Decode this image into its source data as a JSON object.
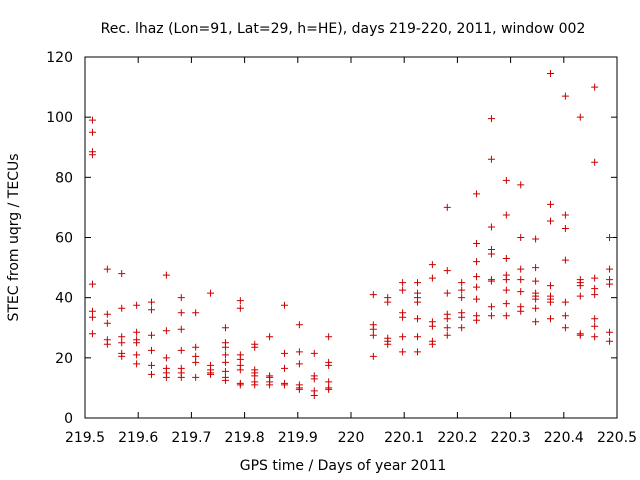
{
  "chart_data": {
    "type": "scatter",
    "title": "Rec. lhaz (Lon=91, Lat=29, h=HE), days 219-220, 2011, window 002",
    "xlabel": "GPS time / Days of year 2011",
    "ylabel": "STEC from uqrg / TECUs",
    "xlim": [
      219.5,
      220.5
    ],
    "ylim": [
      0,
      120
    ],
    "x_ticks": [
      219.5,
      219.6,
      219.7,
      219.8,
      219.9,
      220,
      220.1,
      220.2,
      220.3,
      220.4,
      220.5
    ],
    "x_tick_labels": [
      "219.5",
      "219.6",
      "219.7",
      "219.8",
      "219.9",
      "220",
      "220.1",
      "220.2",
      "220.3",
      "220.4",
      "220.5"
    ],
    "y_ticks": [
      0,
      20,
      40,
      60,
      80,
      100,
      120
    ],
    "y_tick_labels": [
      "0",
      "20",
      "40",
      "60",
      "80",
      "100",
      "120"
    ],
    "grid": false,
    "marker": "+",
    "color": "#cc0000",
    "series": [
      {
        "points": [
          [
            219.514,
            99
          ],
          [
            219.514,
            95
          ],
          [
            219.514,
            88.5
          ],
          [
            219.514,
            87.5
          ],
          [
            219.514,
            44.5
          ],
          [
            219.514,
            35.5
          ],
          [
            219.514,
            33.5
          ],
          [
            219.514,
            28
          ],
          [
            219.542,
            49.5
          ],
          [
            219.542,
            34.5
          ],
          [
            219.542,
            31.5
          ],
          [
            219.542,
            26
          ],
          [
            219.542,
            24.5
          ],
          [
            219.569,
            48
          ],
          [
            219.569,
            36.5
          ],
          [
            219.569,
            27
          ],
          [
            219.569,
            25
          ],
          [
            219.569,
            21.5
          ],
          [
            219.569,
            20.5
          ],
          [
            219.597,
            37.5
          ],
          [
            219.597,
            28.5
          ],
          [
            219.597,
            26
          ],
          [
            219.597,
            25
          ],
          [
            219.597,
            21
          ],
          [
            219.597,
            18
          ],
          [
            219.625,
            38.5
          ],
          [
            219.625,
            36
          ],
          [
            219.625,
            27.5
          ],
          [
            219.625,
            22.5
          ],
          [
            219.625,
            17.5
          ],
          [
            219.625,
            14.5
          ],
          [
            219.653,
            47.5
          ],
          [
            219.653,
            29
          ],
          [
            219.653,
            20
          ],
          [
            219.653,
            16.5
          ],
          [
            219.653,
            15
          ],
          [
            219.653,
            13.5
          ],
          [
            219.681,
            40
          ],
          [
            219.681,
            35
          ],
          [
            219.681,
            29.5
          ],
          [
            219.681,
            22.5
          ],
          [
            219.681,
            16.5
          ],
          [
            219.681,
            15
          ],
          [
            219.681,
            13.5
          ],
          [
            219.708,
            35
          ],
          [
            219.708,
            23.5
          ],
          [
            219.708,
            20.5
          ],
          [
            219.708,
            18.5
          ],
          [
            219.708,
            13.5
          ],
          [
            219.736,
            41.5
          ],
          [
            219.736,
            17.5
          ],
          [
            219.736,
            16
          ],
          [
            219.736,
            15
          ],
          [
            219.736,
            14.5
          ],
          [
            219.764,
            30
          ],
          [
            219.764,
            25
          ],
          [
            219.764,
            23.5
          ],
          [
            219.764,
            21
          ],
          [
            219.764,
            18.5
          ],
          [
            219.764,
            15.5
          ],
          [
            219.764,
            13.5
          ],
          [
            219.764,
            12.5
          ],
          [
            219.792,
            39
          ],
          [
            219.792,
            36.5
          ],
          [
            219.792,
            21
          ],
          [
            219.792,
            19.5
          ],
          [
            219.792,
            17.5
          ],
          [
            219.792,
            16
          ],
          [
            219.792,
            11.5
          ],
          [
            219.792,
            11
          ],
          [
            219.819,
            24.5
          ],
          [
            219.819,
            23.5
          ],
          [
            219.819,
            16
          ],
          [
            219.819,
            15
          ],
          [
            219.819,
            14
          ],
          [
            219.819,
            12
          ],
          [
            219.819,
            11
          ],
          [
            219.847,
            27
          ],
          [
            219.847,
            14
          ],
          [
            219.847,
            13.5
          ],
          [
            219.847,
            12
          ],
          [
            219.847,
            11
          ],
          [
            219.875,
            37.5
          ],
          [
            219.875,
            21.5
          ],
          [
            219.875,
            16.5
          ],
          [
            219.875,
            11.5
          ],
          [
            219.875,
            11
          ],
          [
            219.903,
            31
          ],
          [
            219.903,
            22
          ],
          [
            219.903,
            18
          ],
          [
            219.903,
            11
          ],
          [
            219.903,
            10
          ],
          [
            219.903,
            9.5
          ],
          [
            219.931,
            21.5
          ],
          [
            219.931,
            14
          ],
          [
            219.931,
            13
          ],
          [
            219.931,
            9
          ],
          [
            219.931,
            7.5
          ],
          [
            219.958,
            27
          ],
          [
            219.958,
            18.5
          ],
          [
            219.958,
            17.5
          ],
          [
            219.958,
            12
          ],
          [
            219.958,
            10
          ],
          [
            219.958,
            9.5
          ],
          [
            220.042,
            41
          ],
          [
            220.042,
            31
          ],
          [
            220.042,
            29.5
          ],
          [
            220.042,
            27.5
          ],
          [
            220.042,
            20.5
          ],
          [
            220.069,
            40
          ],
          [
            220.069,
            38.5
          ],
          [
            220.069,
            26.5
          ],
          [
            220.069,
            25.5
          ],
          [
            220.069,
            24.5
          ],
          [
            220.097,
            45
          ],
          [
            220.097,
            42.5
          ],
          [
            220.097,
            35
          ],
          [
            220.097,
            33.5
          ],
          [
            220.097,
            27
          ],
          [
            220.097,
            22
          ],
          [
            220.125,
            45
          ],
          [
            220.125,
            41.5
          ],
          [
            220.125,
            40
          ],
          [
            220.125,
            38.5
          ],
          [
            220.125,
            33
          ],
          [
            220.125,
            27
          ],
          [
            220.125,
            22
          ],
          [
            220.153,
            51
          ],
          [
            220.153,
            46.5
          ],
          [
            220.153,
            32
          ],
          [
            220.153,
            30.5
          ],
          [
            220.153,
            25.5
          ],
          [
            220.153,
            24.5
          ],
          [
            220.181,
            70
          ],
          [
            220.181,
            49
          ],
          [
            220.181,
            41.5
          ],
          [
            220.181,
            34.5
          ],
          [
            220.181,
            33
          ],
          [
            220.181,
            30
          ],
          [
            220.181,
            27.5
          ],
          [
            220.208,
            45
          ],
          [
            220.208,
            42.5
          ],
          [
            220.208,
            40
          ],
          [
            220.208,
            35
          ],
          [
            220.208,
            33.5
          ],
          [
            220.208,
            30
          ],
          [
            220.236,
            74.5
          ],
          [
            220.236,
            58
          ],
          [
            220.236,
            52
          ],
          [
            220.236,
            47
          ],
          [
            220.236,
            43.5
          ],
          [
            220.236,
            39.5
          ],
          [
            220.236,
            34
          ],
          [
            220.236,
            32.5
          ],
          [
            220.264,
            99.5
          ],
          [
            220.264,
            86
          ],
          [
            220.264,
            63.5
          ],
          [
            220.264,
            56
          ],
          [
            220.264,
            54.5
          ],
          [
            220.264,
            46
          ],
          [
            220.264,
            45.5
          ],
          [
            220.264,
            37
          ],
          [
            220.264,
            34
          ],
          [
            220.292,
            79
          ],
          [
            220.292,
            67.5
          ],
          [
            220.292,
            53
          ],
          [
            220.292,
            47.5
          ],
          [
            220.292,
            46
          ],
          [
            220.292,
            42.5
          ],
          [
            220.292,
            38
          ],
          [
            220.292,
            34
          ],
          [
            220.319,
            77.5
          ],
          [
            220.319,
            60
          ],
          [
            220.319,
            49.5
          ],
          [
            220.319,
            46
          ],
          [
            220.319,
            42
          ],
          [
            220.319,
            37
          ],
          [
            220.319,
            35.5
          ],
          [
            220.347,
            59.5
          ],
          [
            220.347,
            50
          ],
          [
            220.347,
            45.5
          ],
          [
            220.347,
            41.5
          ],
          [
            220.347,
            40.5
          ],
          [
            220.347,
            39.5
          ],
          [
            220.347,
            36.5
          ],
          [
            220.347,
            32
          ],
          [
            220.375,
            114.5
          ],
          [
            220.375,
            71
          ],
          [
            220.375,
            65.5
          ],
          [
            220.375,
            44
          ],
          [
            220.375,
            40.5
          ],
          [
            220.375,
            39.5
          ],
          [
            220.375,
            38.5
          ],
          [
            220.375,
            33
          ],
          [
            220.403,
            107
          ],
          [
            220.403,
            67.5
          ],
          [
            220.403,
            63
          ],
          [
            220.403,
            52.5
          ],
          [
            220.403,
            38.5
          ],
          [
            220.403,
            34
          ],
          [
            220.403,
            30
          ],
          [
            220.431,
            100
          ],
          [
            220.431,
            46
          ],
          [
            220.431,
            45
          ],
          [
            220.431,
            44
          ],
          [
            220.431,
            40.5
          ],
          [
            220.431,
            28
          ],
          [
            220.431,
            27.5
          ],
          [
            220.458,
            110
          ],
          [
            220.458,
            85
          ],
          [
            220.458,
            46.5
          ],
          [
            220.458,
            43
          ],
          [
            220.458,
            41
          ],
          [
            220.458,
            33
          ],
          [
            220.458,
            30.5
          ],
          [
            220.458,
            27
          ],
          [
            220.486,
            60
          ],
          [
            220.486,
            49.5
          ],
          [
            220.486,
            46
          ],
          [
            220.486,
            44.5
          ],
          [
            220.486,
            28.5
          ],
          [
            220.486,
            25.5
          ]
        ]
      }
    ]
  }
}
